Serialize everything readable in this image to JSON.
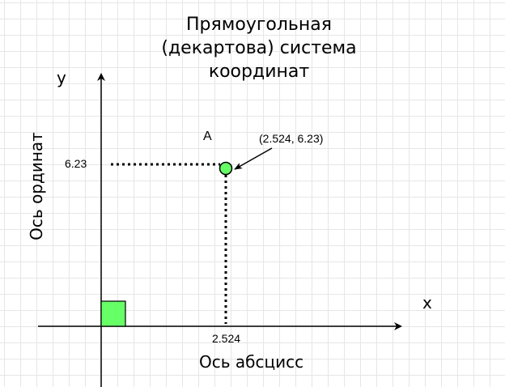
{
  "title": {
    "line1": "Прямоугольная",
    "line2": "(декартова) система",
    "line3": "координат"
  },
  "axes": {
    "x_letter": "x",
    "y_letter": "y",
    "x_name": "Ось абсцисс",
    "y_name": "Ось ординат"
  },
  "point": {
    "name": "A",
    "x_value": "2.524",
    "y_value": "6.23",
    "coordinates_label": "(2.524, 6.23)",
    "fill_color": "#66ff66"
  },
  "colors": {
    "origin_square": "#66ff66",
    "grid": "#e6e6e6",
    "ink": "#000000"
  }
}
